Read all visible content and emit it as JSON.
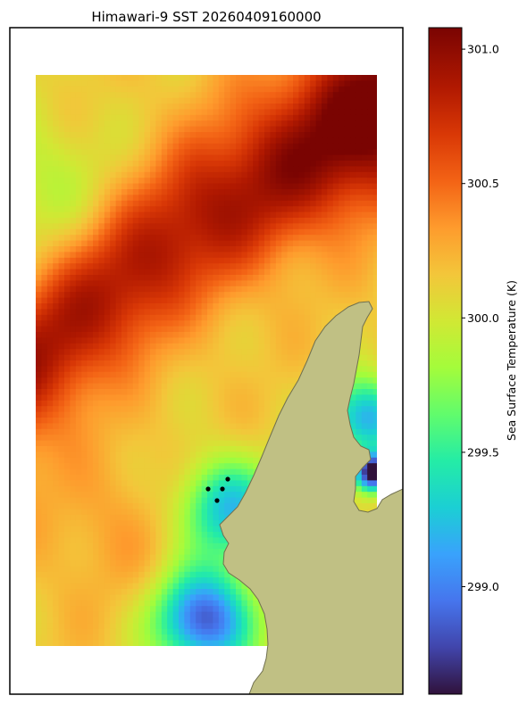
{
  "chart_data": {
    "type": "heatmap",
    "title": "Himawari-9 SST 20260409160000",
    "colorbar": {
      "label": "Sea Surface Temperature (K)",
      "range": [
        298.6,
        301.08
      ],
      "ticks": [
        "299.0",
        "299.5",
        "300.0",
        "300.5",
        "301.0"
      ],
      "tick_values": [
        299.0,
        299.5,
        300.0,
        300.5,
        301.0
      ],
      "colormap": "turbo"
    },
    "land_color": "#c0c084",
    "land_edge_color": "#707050",
    "grid": false,
    "sample_values_K": [
      {
        "region": "far north-east corner",
        "value": 301.0
      },
      {
        "region": "central warm band",
        "value": 300.85
      },
      {
        "region": "western edge north",
        "value": 300.05
      },
      {
        "region": "south-west",
        "value": 300.2
      },
      {
        "region": "near coast (inlet)",
        "value": 299.3
      },
      {
        "region": "south near coast",
        "value": 299.0
      }
    ],
    "markers_count": 4
  }
}
